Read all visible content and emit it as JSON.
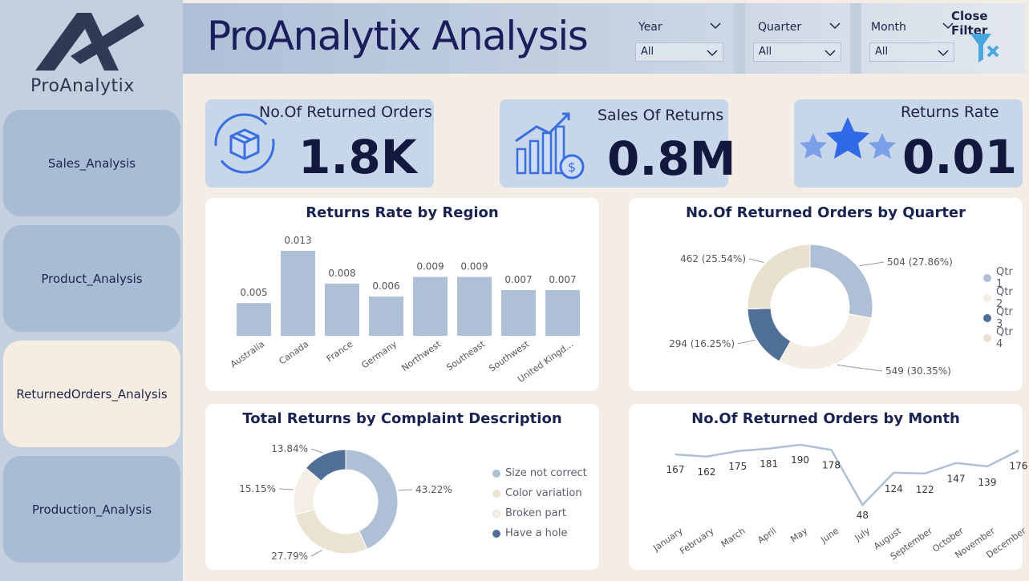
{
  "app": {
    "logo_text": "ProAnalytix",
    "title": "ProAnalytix Analysis"
  },
  "nav": [
    {
      "label": "Sales_Analysis",
      "active": false
    },
    {
      "label": "Product_Analysis",
      "active": false
    },
    {
      "label": "ReturnedOrders_Analysis",
      "active": true
    },
    {
      "label": "Production_Analysis",
      "active": false
    }
  ],
  "slicers": {
    "year": {
      "label": "Year",
      "value": "All"
    },
    "quarter": {
      "label": "Quarter",
      "value": "All"
    },
    "month": {
      "label": "Month",
      "value": "All"
    }
  },
  "close_filter_label": "Close Filter",
  "kpis": {
    "returned_orders": {
      "label": "No.Of Returned Orders",
      "value": "1.8K"
    },
    "sales_of_returns": {
      "label": "Sales Of Returns",
      "value": "0.8M"
    },
    "returns_rate": {
      "label": "Returns Rate",
      "value": "0.01"
    }
  },
  "colors": {
    "bar": "#aebfd6",
    "qtr1": "#aebfd6",
    "qtr2": "#f3ede4",
    "qtr3": "#4f6f96",
    "qtr4": "#e9e0cd",
    "line": "#aebfd6",
    "c_size": "#aebfd6",
    "c_color": "#ebe3d1",
    "c_broken": "#f4eee6",
    "c_hole": "#4f6f96"
  },
  "chart_data": [
    {
      "type": "bar",
      "title": "Returns Rate by Region",
      "categories": [
        "Australia",
        "Canada",
        "France",
        "Germany",
        "Northwest",
        "Southeast",
        "Southwest",
        "United Kingd..."
      ],
      "values": [
        0.005,
        0.013,
        0.008,
        0.006,
        0.009,
        0.009,
        0.007,
        0.007
      ],
      "labels": [
        "0.005",
        "0.013",
        "0.008",
        "0.006",
        "0.009",
        "0.009",
        "0.007",
        "0.007"
      ],
      "ylim": [
        0,
        0.013
      ]
    },
    {
      "type": "pie",
      "title": "No.Of Returned Orders by Quarter",
      "categories": [
        "Qtr 1",
        "Qtr 2",
        "Qtr 3",
        "Qtr 4"
      ],
      "values": [
        504,
        549,
        294,
        462
      ],
      "labels": [
        "504 (27.86%)",
        "549 (30.35%)",
        "294 (16.25%)",
        "462 (25.54%)"
      ],
      "legend": "right"
    },
    {
      "type": "pie",
      "title": "Total Returns by Complaint Description",
      "categories": [
        "Size not correct",
        "Color variation",
        "Broken part",
        "Have a hole"
      ],
      "values": [
        43.22,
        27.79,
        15.15,
        13.84
      ],
      "labels": [
        "43.22%",
        "27.79%",
        "15.15%",
        "13.84%"
      ],
      "legend": "right"
    },
    {
      "type": "line",
      "title": "No.Of Returned Orders by Month",
      "categories": [
        "January",
        "February",
        "March",
        "April",
        "May",
        "June",
        "July",
        "August",
        "September",
        "October",
        "November",
        "December"
      ],
      "values": [
        167,
        162,
        175,
        181,
        190,
        178,
        48,
        124,
        122,
        147,
        139,
        176
      ],
      "ylim": [
        48,
        190
      ]
    }
  ]
}
